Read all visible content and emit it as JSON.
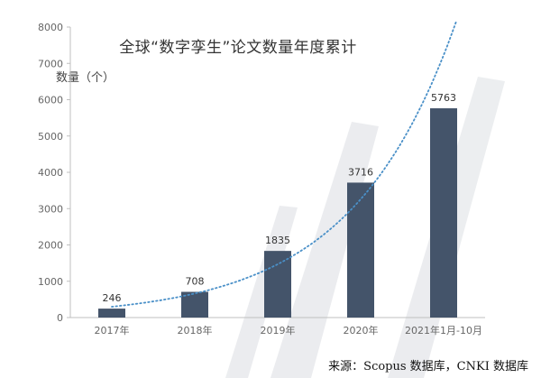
{
  "chart_data": {
    "type": "bar",
    "title": "全球“数字孪生”论文数量年度累计",
    "ylabel": "数量（个）",
    "xlabel": "",
    "categories": [
      "2017年",
      "2018年",
      "2019年",
      "2020年",
      "2021年1月-10月"
    ],
    "values": [
      246,
      708,
      1835,
      3716,
      5763
    ],
    "data_labels": [
      "246",
      "708",
      "1835",
      "3716",
      "5763"
    ],
    "ylim": [
      0,
      8000
    ],
    "yticks": [
      0,
      1000,
      2000,
      3000,
      4000,
      5000,
      6000,
      7000,
      8000
    ],
    "ytick_labels": [
      "0",
      "1000",
      "2000",
      "3000",
      "4000",
      "5000",
      "6000",
      "7000",
      "8000"
    ],
    "grid": false,
    "legend": "none",
    "trendline": {
      "type": "exponential",
      "style": "dotted"
    },
    "colors": {
      "bar": "#44546a",
      "trendline": "#4a90c8",
      "axis": "#bfbfbf"
    }
  },
  "source": "来源：Scopus 数据库，CNKI 数据库"
}
